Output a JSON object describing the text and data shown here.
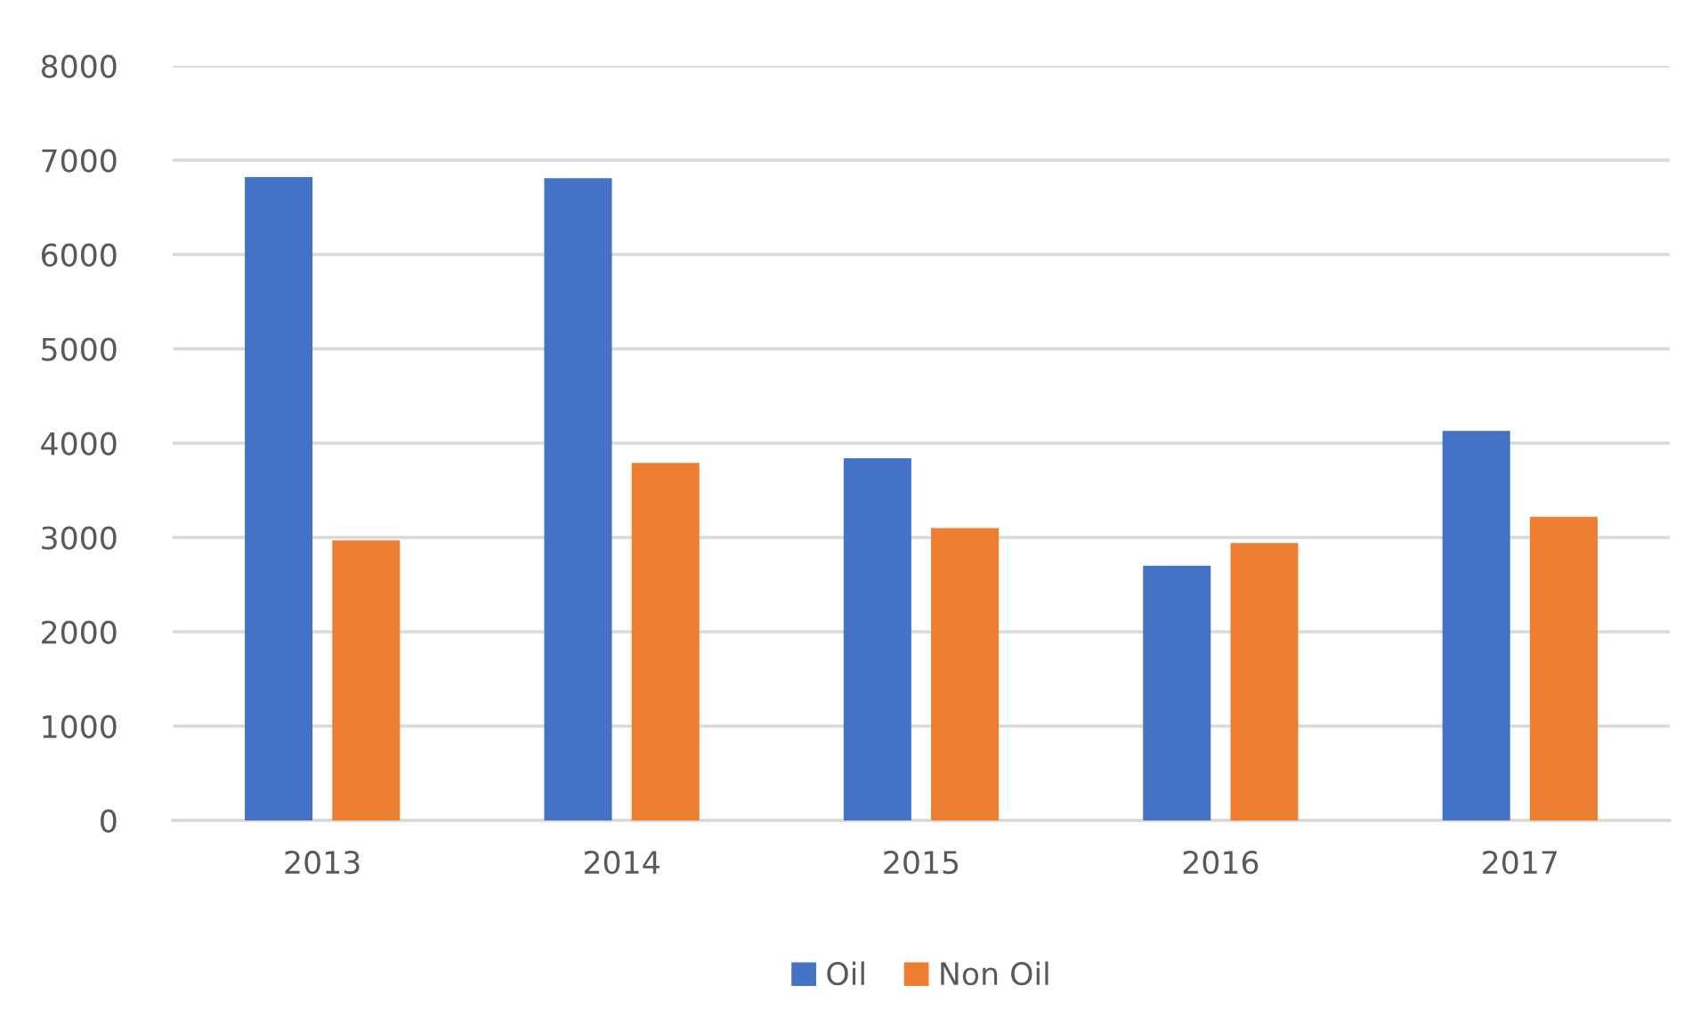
{
  "chart_data": {
    "type": "bar",
    "categories": [
      "2013",
      "2014",
      "2015",
      "2016",
      "2017"
    ],
    "series": [
      {
        "name": "Oil",
        "color": "#4472c4",
        "values": [
          6820,
          6810,
          3840,
          2700,
          4130
        ]
      },
      {
        "name": "Non Oil",
        "color": "#ed7d31",
        "values": [
          2970,
          3790,
          3100,
          2940,
          3220
        ]
      }
    ],
    "ylim": [
      0,
      8000
    ],
    "yticks": [
      0,
      1000,
      2000,
      3000,
      4000,
      5000,
      6000,
      7000,
      8000
    ],
    "grid": "y",
    "legend": "bottom"
  }
}
